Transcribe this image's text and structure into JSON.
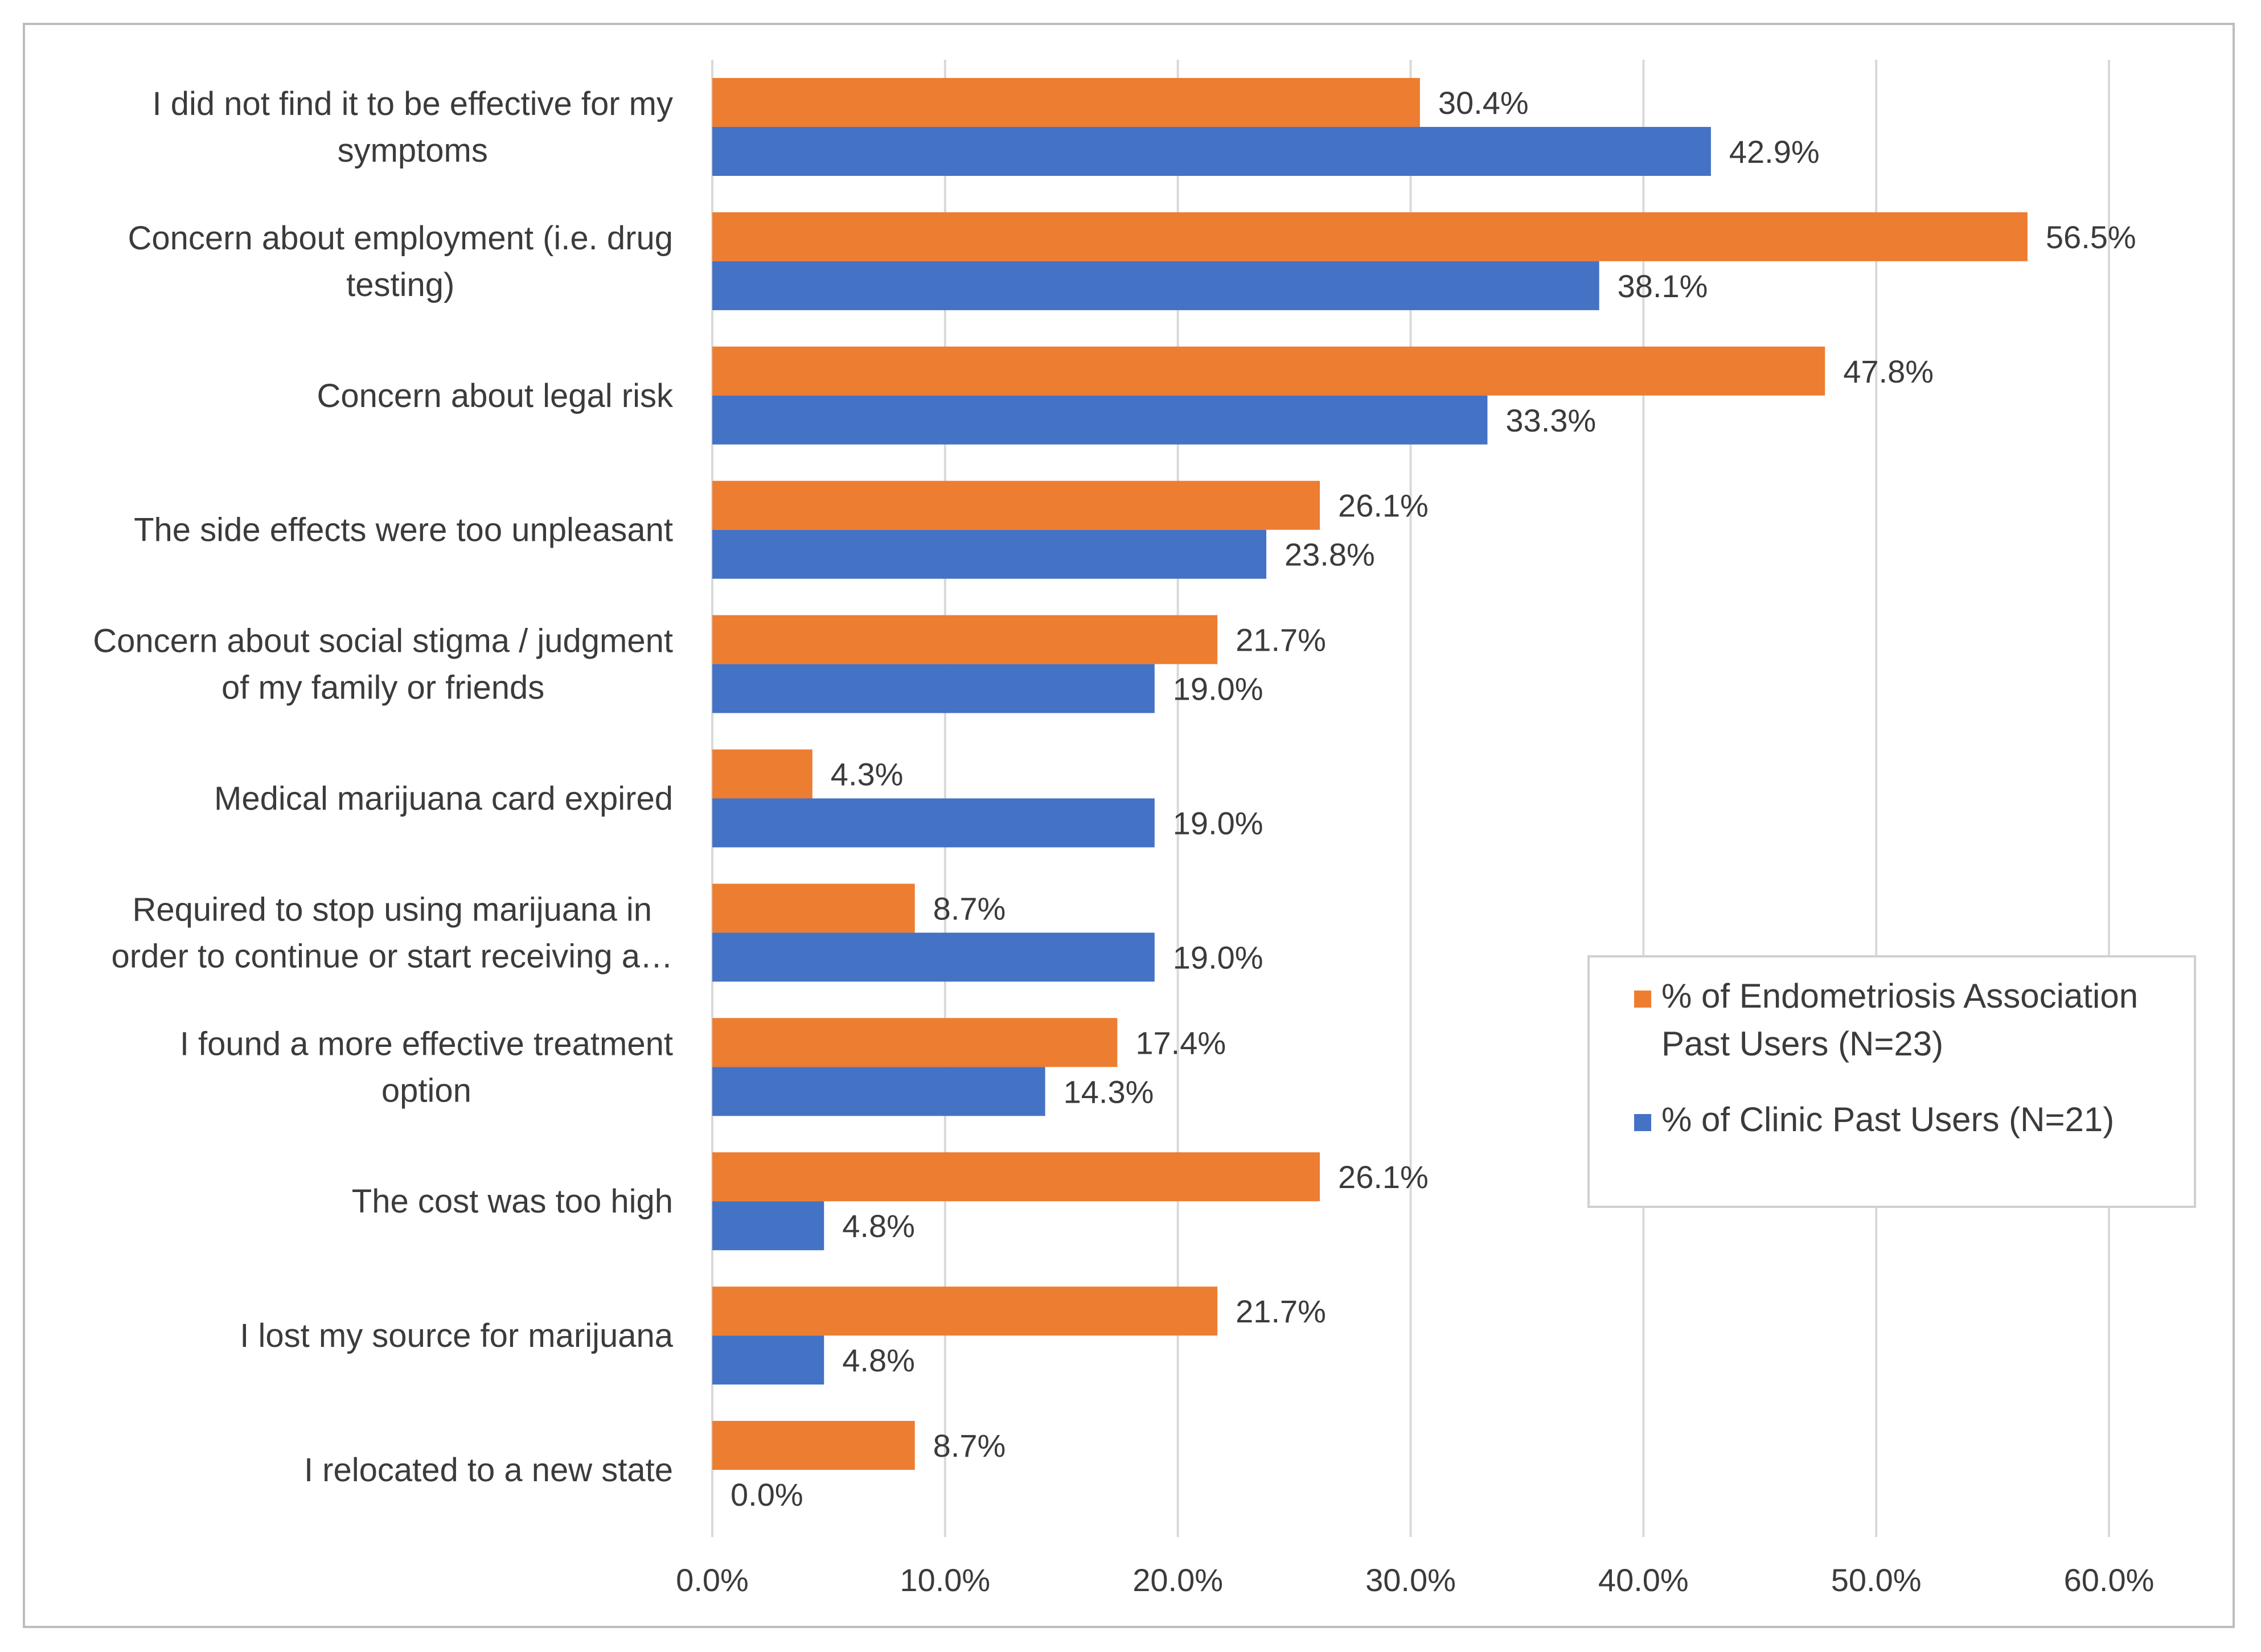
{
  "chart_data": {
    "type": "bar",
    "orientation": "horizontal",
    "title": "",
    "xlabel": "",
    "ylabel": "",
    "xlim": [
      0,
      60
    ],
    "x_ticks": [
      "0.0%",
      "10.0%",
      "20.0%",
      "30.0%",
      "40.0%",
      "50.0%",
      "60.0%"
    ],
    "grid": true,
    "legend_position": "right",
    "categories": [
      [
        "I did not find it to be effective for my",
        "symptoms"
      ],
      [
        "Concern about employment (i.e. drug",
        "testing)"
      ],
      [
        "Concern about legal risk"
      ],
      [
        "The side effects were too unpleasant"
      ],
      [
        "Concern about social stigma / judgment",
        "of my family or friends"
      ],
      [
        "Medical marijuana card expired"
      ],
      [
        "Required to stop using marijuana in",
        "order to continue or start receiving a…"
      ],
      [
        "I found a more effective treatment",
        "option"
      ],
      [
        "The cost was too high"
      ],
      [
        "I lost my source for marijuana"
      ],
      [
        "I relocated to a new state"
      ]
    ],
    "series": [
      {
        "name": "% of Endometriosis Association Past Users (N=23)",
        "legend_lines": [
          "% of Endometriosis Association",
          "Past Users (N=23)"
        ],
        "color": "#ED7D31",
        "values": [
          30.4,
          56.5,
          47.8,
          26.1,
          21.7,
          4.3,
          8.7,
          17.4,
          26.1,
          21.7,
          8.7
        ],
        "labels": [
          "30.4%",
          "56.5%",
          "47.8%",
          "26.1%",
          "21.7%",
          "4.3%",
          "8.7%",
          "17.4%",
          "26.1%",
          "21.7%",
          "8.7%"
        ]
      },
      {
        "name": "% of Clinic Past Users (N=21)",
        "legend_lines": [
          "% of Clinic Past Users (N=21)"
        ],
        "color": "#4472C4",
        "values": [
          42.9,
          38.1,
          33.3,
          23.8,
          19.0,
          19.0,
          19.0,
          14.3,
          4.8,
          4.8,
          0.0
        ],
        "labels": [
          "42.9%",
          "38.1%",
          "33.3%",
          "23.8%",
          "19.0%",
          "19.0%",
          "19.0%",
          "14.3%",
          "4.8%",
          "4.8%",
          "0.0%"
        ]
      }
    ]
  }
}
